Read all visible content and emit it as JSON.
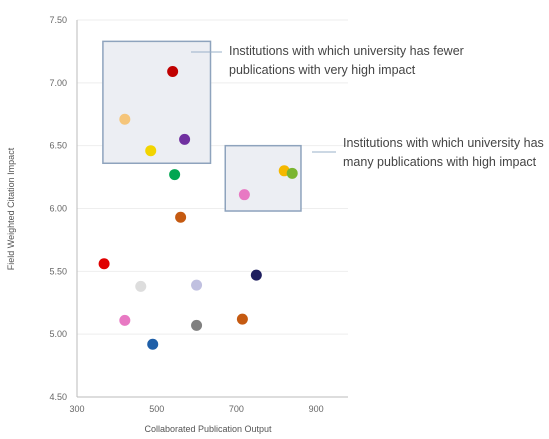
{
  "chart_data": {
    "type": "scatter",
    "title": "",
    "xlabel": "Collaborated Publication Output",
    "ylabel": "Field Weighted Citation Impact",
    "xlim": [
      300,
      980
    ],
    "ylim": [
      4.5,
      7.5
    ],
    "x_ticks": [
      "300",
      "500",
      "700",
      "900"
    ],
    "x_tick_values": [
      300,
      500,
      700,
      900
    ],
    "y_ticks": [
      "7.50",
      "7.00",
      "6.50",
      "6.00",
      "5.50",
      "5.00",
      "4.50"
    ],
    "y_tick_values": [
      7.5,
      7.0,
      6.5,
      6.0,
      5.5,
      5.0,
      4.5
    ],
    "grid": true,
    "points": [
      {
        "x": 540,
        "y": 7.09,
        "color": "#c00000"
      },
      {
        "x": 420,
        "y": 6.71,
        "color": "#f5c57a"
      },
      {
        "x": 570,
        "y": 6.55,
        "color": "#7030a0"
      },
      {
        "x": 485,
        "y": 6.46,
        "color": "#f2d400"
      },
      {
        "x": 545,
        "y": 6.27,
        "color": "#00a651"
      },
      {
        "x": 820,
        "y": 6.3,
        "color": "#f5b800"
      },
      {
        "x": 840,
        "y": 6.28,
        "color": "#7ab530"
      },
      {
        "x": 720,
        "y": 6.11,
        "color": "#e879c3"
      },
      {
        "x": 560,
        "y": 5.93,
        "color": "#c55a11"
      },
      {
        "x": 368,
        "y": 5.56,
        "color": "#e00000"
      },
      {
        "x": 750,
        "y": 5.47,
        "color": "#1f1f5f"
      },
      {
        "x": 460,
        "y": 5.38,
        "color": "#dddddd"
      },
      {
        "x": 600,
        "y": 5.39,
        "color": "#c0c0e0"
      },
      {
        "x": 420,
        "y": 5.11,
        "color": "#e879c3"
      },
      {
        "x": 600,
        "y": 5.07,
        "color": "#808080"
      },
      {
        "x": 715,
        "y": 5.12,
        "color": "#c55a11"
      },
      {
        "x": 490,
        "y": 4.92,
        "color": "#1f5fa8"
      }
    ],
    "highlight_boxes": [
      {
        "x": [
          365,
          635
        ],
        "y": [
          6.36,
          7.33
        ]
      },
      {
        "x": [
          672,
          862
        ],
        "y": [
          5.98,
          6.5
        ]
      }
    ],
    "annotations": [
      "Institutions with which university has fewer publications with very high impact",
      "Institutions with which university has many publications with high impact"
    ]
  }
}
